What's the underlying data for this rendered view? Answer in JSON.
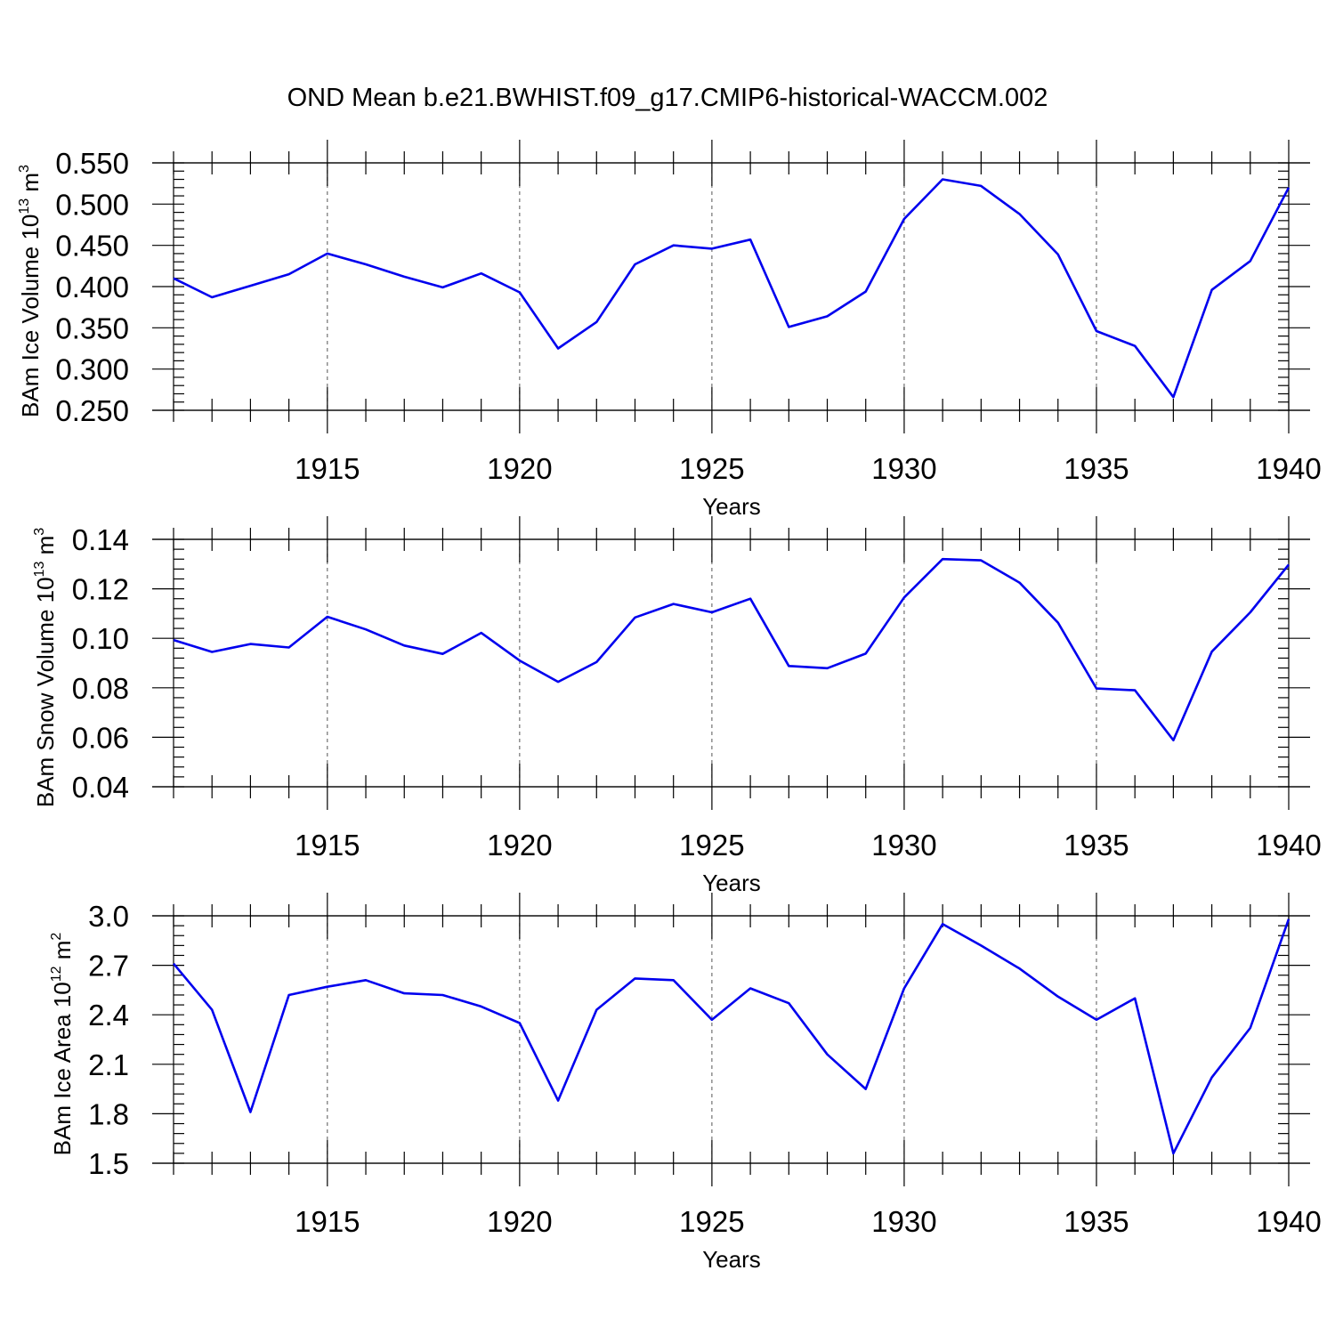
{
  "title": "OND Mean b.e21.BWHIST.f09_g17.CMIP6-historical-WACCM.002",
  "series_color": "#0000ee",
  "chart_data": [
    {
      "type": "line",
      "ylabel": {
        "base": "BAm Ice Volume 10",
        "exp": "13",
        "unit": " m",
        "unit_exp": "3"
      },
      "xlabel": "Years",
      "xlim": [
        1911,
        1940
      ],
      "ylim": [
        0.25,
        0.55
      ],
      "yticks": [
        0.25,
        0.3,
        0.35,
        0.4,
        0.45,
        0.5,
        0.55
      ],
      "ytick_labels": [
        "0.250",
        "0.300",
        "0.350",
        "0.400",
        "0.450",
        "0.500",
        "0.550"
      ],
      "yminor_step": 0.01,
      "xticks": [
        1915,
        1920,
        1925,
        1930,
        1935,
        1940
      ],
      "xtick_labels": [
        "1915",
        "1920",
        "1925",
        "1930",
        "1935",
        "1940"
      ],
      "grid": "vertical-dashed",
      "x": [
        1911,
        1912,
        1913,
        1914,
        1915,
        1916,
        1917,
        1918,
        1919,
        1920,
        1921,
        1922,
        1923,
        1924,
        1925,
        1926,
        1927,
        1928,
        1929,
        1930,
        1931,
        1932,
        1933,
        1934,
        1935,
        1936,
        1937,
        1938,
        1939,
        1940
      ],
      "values": [
        0.41,
        0.387,
        0.401,
        0.415,
        0.44,
        0.427,
        0.412,
        0.399,
        0.416,
        0.393,
        0.325,
        0.357,
        0.427,
        0.45,
        0.446,
        0.457,
        0.351,
        0.364,
        0.394,
        0.482,
        0.53,
        0.522,
        0.488,
        0.439,
        0.346,
        0.328,
        0.266,
        0.396,
        0.431,
        0.52
      ]
    },
    {
      "type": "line",
      "ylabel": {
        "base": "BAm Snow Volume 10",
        "exp": "13",
        "unit": " m",
        "unit_exp": "3"
      },
      "xlabel": "Years",
      "xlim": [
        1911,
        1940
      ],
      "ylim": [
        0.04,
        0.14
      ],
      "yticks": [
        0.04,
        0.06,
        0.08,
        0.1,
        0.12,
        0.14
      ],
      "ytick_labels": [
        "0.04",
        "0.06",
        "0.08",
        "0.10",
        "0.12",
        "0.14"
      ],
      "yminor_step": 0.004,
      "xticks": [
        1915,
        1920,
        1925,
        1930,
        1935,
        1940
      ],
      "xtick_labels": [
        "1915",
        "1920",
        "1925",
        "1930",
        "1935",
        "1940"
      ],
      "grid": "vertical-dashed",
      "x": [
        1911,
        1912,
        1913,
        1914,
        1915,
        1916,
        1917,
        1918,
        1919,
        1920,
        1921,
        1922,
        1923,
        1924,
        1925,
        1926,
        1927,
        1928,
        1929,
        1930,
        1931,
        1932,
        1933,
        1934,
        1935,
        1936,
        1937,
        1938,
        1939,
        1940
      ],
      "values": [
        0.0993,
        0.0945,
        0.0977,
        0.0963,
        0.1087,
        0.1036,
        0.0971,
        0.0937,
        0.1022,
        0.091,
        0.0824,
        0.0904,
        0.1084,
        0.1139,
        0.1105,
        0.116,
        0.0888,
        0.0879,
        0.0938,
        0.1165,
        0.132,
        0.1315,
        0.1225,
        0.1063,
        0.0797,
        0.079,
        0.0588,
        0.0946,
        0.1105,
        0.1298
      ]
    },
    {
      "type": "line",
      "ylabel": {
        "base": "BAm Ice Area 10",
        "exp": "12",
        "unit": " m",
        "unit_exp": "2"
      },
      "xlabel": "Years",
      "xlim": [
        1911,
        1940
      ],
      "ylim": [
        1.5,
        3.0
      ],
      "yticks": [
        1.5,
        1.8,
        2.1,
        2.4,
        2.7,
        3.0
      ],
      "ytick_labels": [
        "1.5",
        "1.8",
        "2.1",
        "2.4",
        "2.7",
        "3.0"
      ],
      "yminor_step": 0.06,
      "xticks": [
        1915,
        1920,
        1925,
        1930,
        1935,
        1940
      ],
      "xtick_labels": [
        "1915",
        "1920",
        "1925",
        "1930",
        "1935",
        "1940"
      ],
      "grid": "vertical-dashed",
      "x": [
        1911,
        1912,
        1913,
        1914,
        1915,
        1916,
        1917,
        1918,
        1919,
        1920,
        1921,
        1922,
        1923,
        1924,
        1925,
        1926,
        1927,
        1928,
        1929,
        1930,
        1931,
        1932,
        1933,
        1934,
        1935,
        1936,
        1937,
        1938,
        1939,
        1940
      ],
      "values": [
        2.71,
        2.43,
        1.81,
        2.52,
        2.57,
        2.61,
        2.53,
        2.52,
        2.45,
        2.35,
        1.88,
        2.43,
        2.62,
        2.61,
        2.37,
        2.56,
        2.47,
        2.16,
        1.95,
        2.56,
        2.95,
        2.82,
        2.68,
        2.51,
        2.37,
        2.5,
        1.56,
        2.02,
        2.32,
        2.98
      ]
    }
  ]
}
